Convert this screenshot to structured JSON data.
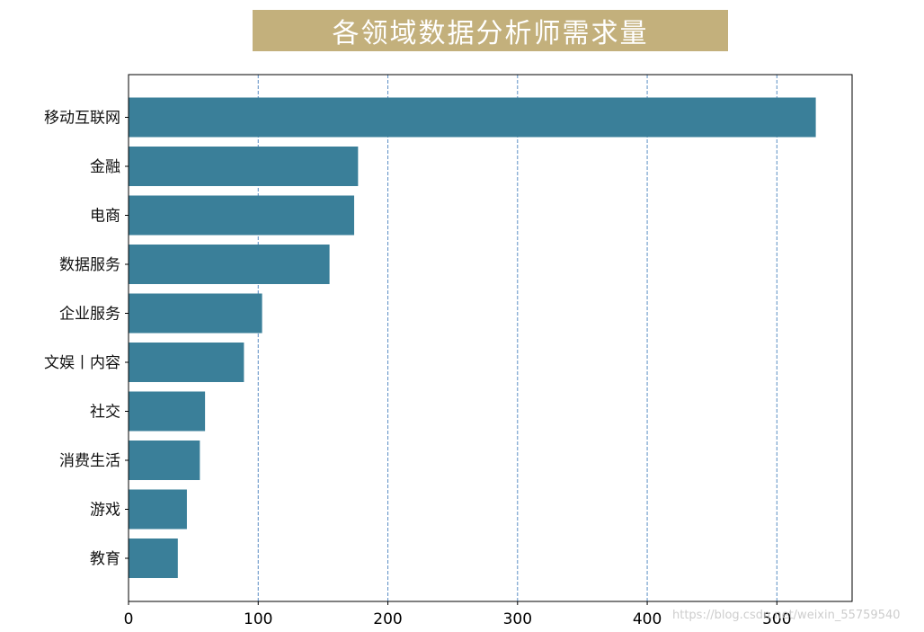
{
  "chart_data": {
    "type": "bar",
    "orientation": "horizontal",
    "title": "各领域数据分析师需求量",
    "xlabel": "",
    "ylabel": "",
    "categories": [
      "移动互联网",
      "金融",
      "电商",
      "数据服务",
      "企业服务",
      "文娱丨内容",
      "社交",
      "消费生活",
      "游戏",
      "教育"
    ],
    "values": [
      530,
      177,
      174,
      155,
      103,
      89,
      59,
      55,
      45,
      38
    ],
    "xlim": [
      0,
      558
    ],
    "xticks": [
      0,
      100,
      200,
      300,
      400,
      500
    ],
    "grid": "vertical dashed",
    "bar_color": "#3a7f99",
    "grid_color": "#5b8ec4",
    "title_box_color": "#c3b07c",
    "title_color": "#ffffff"
  },
  "watermark": "https://blog.csdn.net/weixin_55759540"
}
